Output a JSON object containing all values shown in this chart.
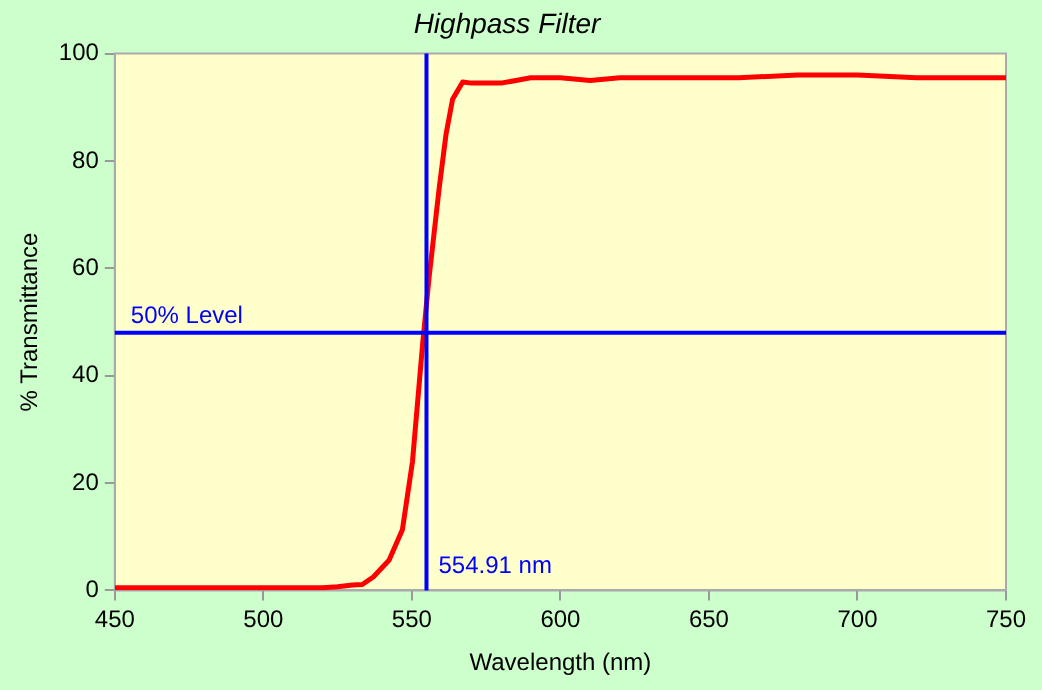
{
  "chart_data": {
    "type": "line",
    "title": "Highpass Filter",
    "xlabel": "Wavelength (nm)",
    "ylabel": "% Transmittance",
    "x": [
      450,
      480,
      510,
      520,
      525,
      530,
      533.3,
      537,
      542.3,
      546.8,
      550.2,
      553.6,
      555.8,
      559.2,
      561.5,
      563.7,
      567.1,
      570,
      580,
      585,
      590,
      600,
      610,
      620,
      640,
      660,
      680,
      700,
      720,
      750
    ],
    "series": [
      {
        "color": "#ff0000",
        "values": [
          0.5,
          0.5,
          0.5,
          0.5,
          0.7,
          1,
          1.1,
          2.5,
          5.6,
          11.3,
          24,
          45.8,
          58.4,
          75,
          85,
          91.5,
          94.7,
          94.5,
          94.5,
          95,
          95.5,
          95.5,
          95,
          95.5,
          95.5,
          95.5,
          96,
          96,
          95.5,
          95.5
        ]
      }
    ],
    "xlim": [
      450,
      750
    ],
    "xticks": [
      450,
      500,
      550,
      600,
      650,
      700,
      750
    ],
    "ylim": [
      0,
      100
    ],
    "yticks": [
      0,
      20,
      40,
      60,
      80,
      100
    ],
    "grid": false,
    "legend": false,
    "marker": "none",
    "line_style": "solid",
    "ref_lines": [
      {
        "axis": "y",
        "value": 48,
        "label": "50% Level",
        "color": "#0000ff"
      },
      {
        "axis": "x",
        "value": 554.91,
        "label": "554.91 nm",
        "color": "#0000ff"
      }
    ]
  }
}
